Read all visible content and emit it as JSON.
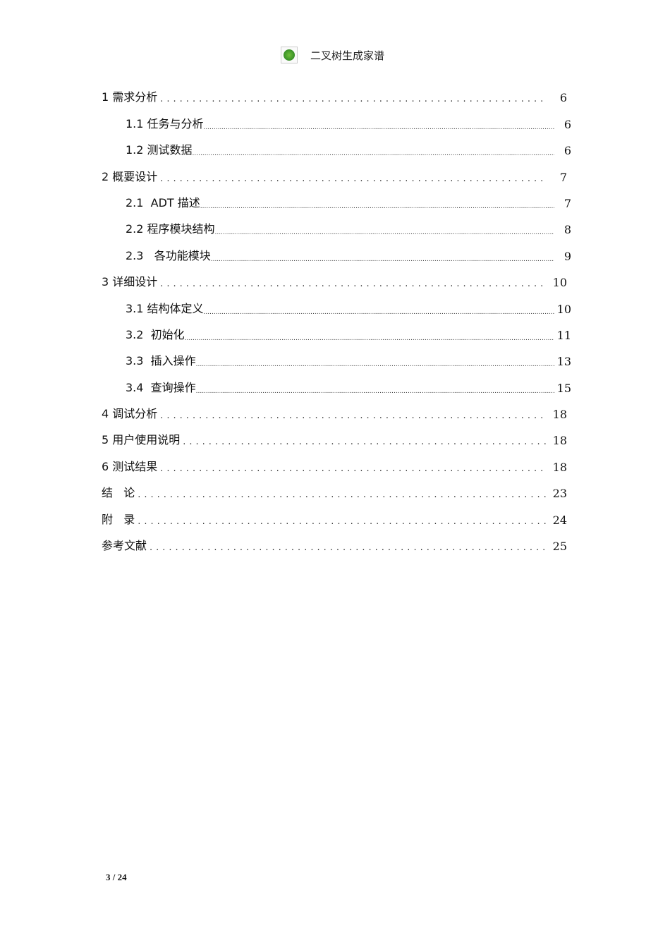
{
  "header": {
    "title": "二叉树生成家谱",
    "logo": "logo-icon"
  },
  "toc": [
    {
      "label": "1 需求分析",
      "page": "6",
      "level": 1
    },
    {
      "label": "1.1 任务与分析",
      "page": "6",
      "level": 2
    },
    {
      "label": "1.2 测试数据",
      "page": "6",
      "level": 2
    },
    {
      "label": "2 概要设计",
      "page": "7",
      "level": 1
    },
    {
      "label": "2.1  ADT 描述",
      "page": "7",
      "level": 2
    },
    {
      "label": "2.2 程序模块结构",
      "page": "8",
      "level": 2
    },
    {
      "label": "2.3   各功能模块",
      "page": "9",
      "level": 2
    },
    {
      "label": "3 详细设计",
      "page": "10",
      "level": 1
    },
    {
      "label": "3.1 结构体定义",
      "page": "10",
      "level": 2
    },
    {
      "label": "3.2  初始化",
      "page": "11",
      "level": 2
    },
    {
      "label": "3.3  插入操作",
      "page": "13",
      "level": 2
    },
    {
      "label": "3.4  查询操作",
      "page": "15",
      "level": 2
    },
    {
      "label": "4 调试分析",
      "page": "18",
      "level": 1
    },
    {
      "label": "5 用户使用说明",
      "page": "18",
      "level": 1
    },
    {
      "label": "6 测试结果",
      "page": "18",
      "level": 1
    },
    {
      "label": "结   论",
      "page": "23",
      "level": 1,
      "plain": true
    },
    {
      "label": "附   录",
      "page": "24",
      "level": 1,
      "plain": true
    },
    {
      "label": "参考文献",
      "page": "25",
      "level": 1,
      "plain": true
    }
  ],
  "footer": {
    "page_indicator": "3 / 24"
  }
}
